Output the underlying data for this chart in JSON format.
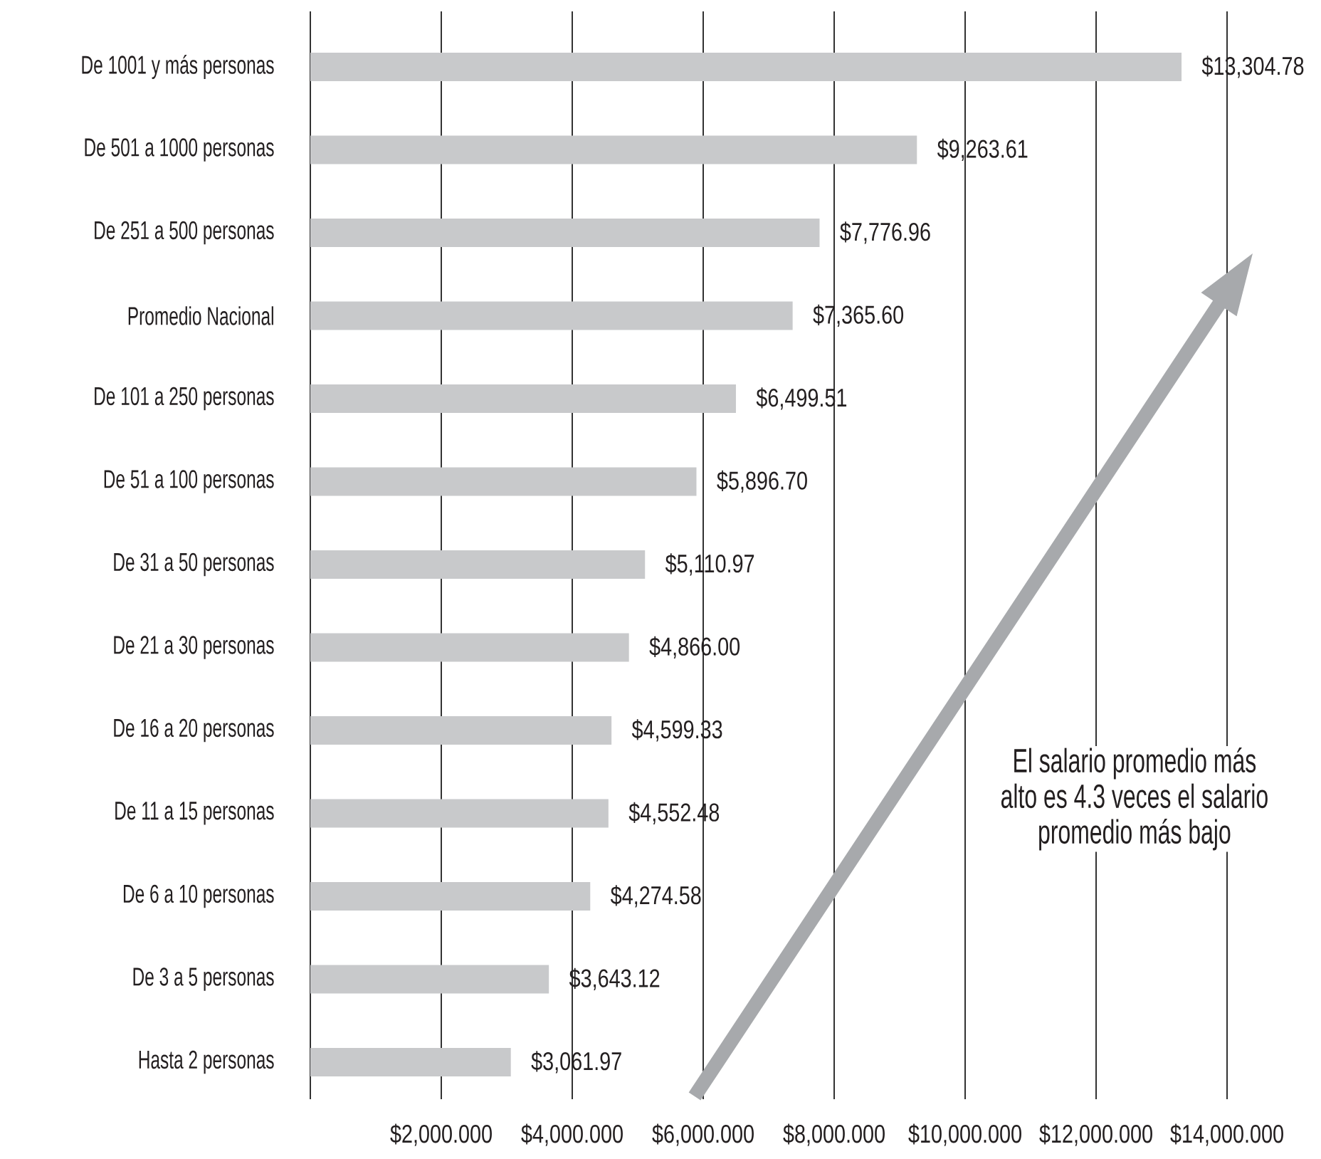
{
  "chart_data": {
    "type": "bar",
    "orientation": "horizontal",
    "categories": [
      "De 1001 y más personas",
      "De 501 a 1000 personas",
      "De 251 a 500 personas",
      "Promedio Nacional",
      "De 101 a 250 personas",
      "De 51 a 100 personas",
      "De 31 a 50 personas",
      "De 21 a 30 personas",
      "De 16 a 20 personas",
      "De 11 a 15 personas",
      "De 6 a 10 personas",
      "De 3 a 5 personas",
      "Hasta 2 personas"
    ],
    "values": [
      13304.78,
      9263.61,
      7776.96,
      7365.6,
      6499.51,
      5896.7,
      5110.97,
      4866.0,
      4599.33,
      4552.48,
      4274.58,
      3643.12,
      3061.97
    ],
    "value_labels": [
      "$13,304.78",
      "$9,263.61",
      "$7,776.96",
      "$7,365.60",
      "$6,499.51",
      "$5,896.70",
      "$5,110.97",
      "$4,866.00",
      "$4,599.33",
      "$4,552.48",
      "$4,274.58",
      "$3,643.12",
      "$3,061.97"
    ],
    "color": "#c8c9cb",
    "xlim": [
      0,
      14000
    ],
    "xticks": [
      {
        "value": 2000,
        "label": "$2,000.000"
      },
      {
        "value": 4000,
        "label": "$4,000.000"
      },
      {
        "value": 6000,
        "label": "$6,000.000"
      },
      {
        "value": 8000,
        "label": "$8,000.000"
      },
      {
        "value": 10000,
        "label": "$10,000.000"
      },
      {
        "value": 12000,
        "label": "$12,000.000"
      },
      {
        "value": 14000,
        "label": "$14,000.000"
      }
    ],
    "grid": "x",
    "annotations": [
      "El salario promedio más alto es 4.3 veces el salario promedio más bajo"
    ]
  }
}
